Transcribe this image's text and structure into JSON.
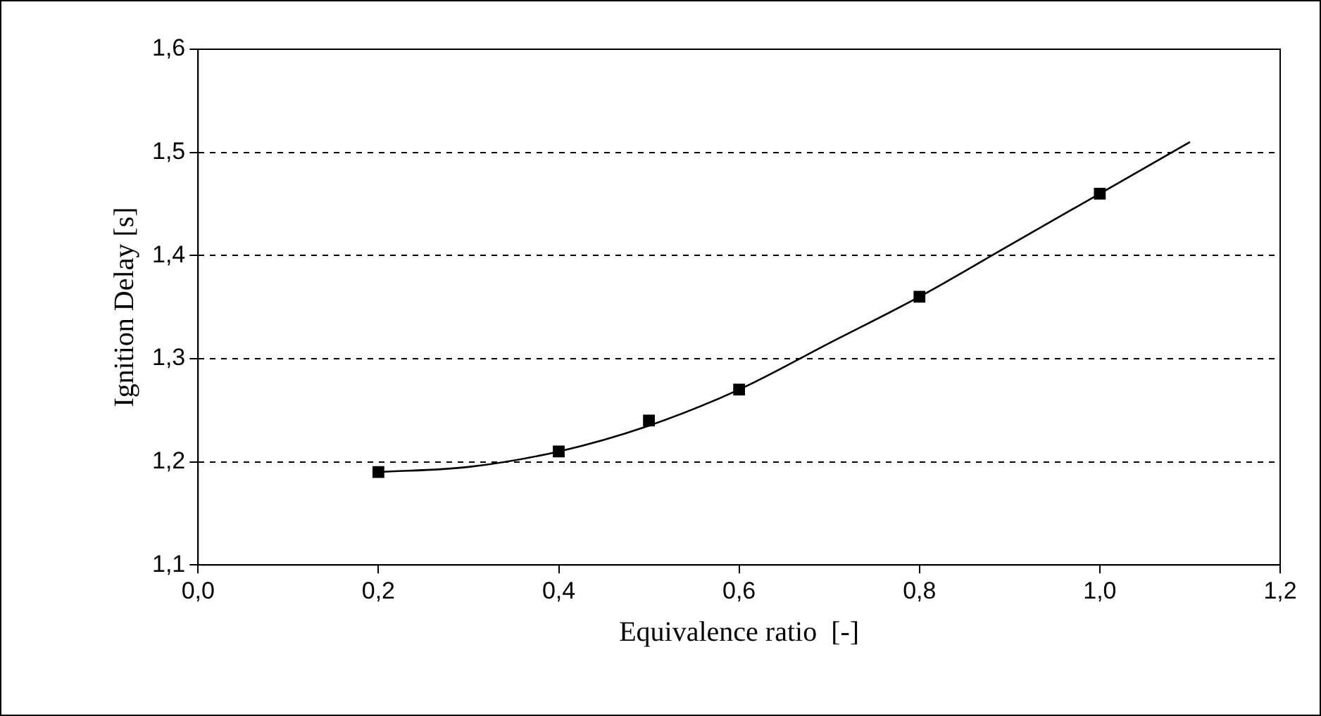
{
  "chart_data": {
    "type": "scatter",
    "xlabel": "Equivalence ratio  [-]",
    "ylabel": "Ignition Delay [s]",
    "xlim": [
      0,
      1.2
    ],
    "ylim": [
      1.1,
      1.6
    ],
    "xticks": [
      {
        "value": 0,
        "label": "0,0"
      },
      {
        "value": 0.2,
        "label": "0,2"
      },
      {
        "value": 0.4,
        "label": "0,4"
      },
      {
        "value": 0.6,
        "label": "0,6"
      },
      {
        "value": 0.8,
        "label": "0,8"
      },
      {
        "value": 1,
        "label": "1,0"
      },
      {
        "value": 1.2,
        "label": "1,2"
      }
    ],
    "yticks": [
      {
        "value": 1.1,
        "label": "1,1"
      },
      {
        "value": 1.2,
        "label": "1,2"
      },
      {
        "value": 1.3,
        "label": "1,3"
      },
      {
        "value": 1.4,
        "label": "1,4"
      },
      {
        "value": 1.5,
        "label": "1,5"
      },
      {
        "value": 1.6,
        "label": "1,6"
      }
    ],
    "grid": "y",
    "legend": false,
    "series": [
      {
        "type": "line",
        "marker": "none",
        "color": "#000000",
        "x": [
          0.2,
          0.3,
          0.4,
          0.5,
          0.6,
          0.7,
          0.8,
          0.9,
          1.0,
          1.1
        ],
        "values": [
          1.19,
          1.195,
          1.21,
          1.235,
          1.27,
          1.315,
          1.36,
          1.41,
          1.46,
          1.51
        ]
      },
      {
        "marker": "square",
        "color": "#000000",
        "x": [
          0.2,
          0.4,
          0.5,
          0.6,
          0.8,
          1.0
        ],
        "values": [
          1.19,
          1.21,
          1.24,
          1.27,
          1.36,
          1.46
        ]
      }
    ]
  }
}
